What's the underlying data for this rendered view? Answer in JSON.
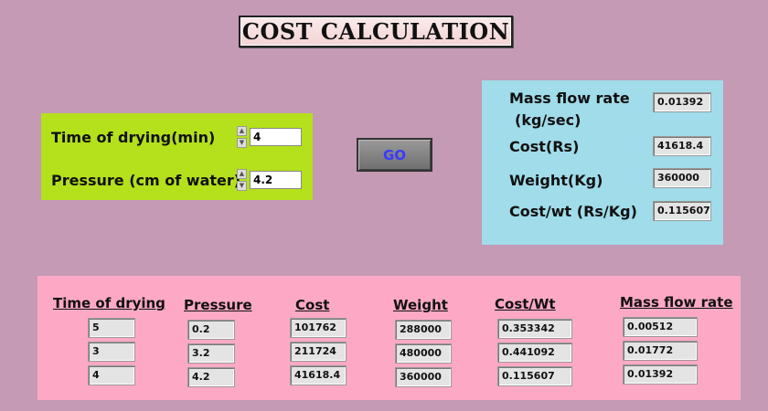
{
  "title": "COST CALCULATION",
  "inputs": {
    "time_label": "Time of drying(min)",
    "time_value": "4",
    "pressure_label": "Pressure (cm of water)",
    "pressure_value": "4.2"
  },
  "go_label": "GO",
  "outputs": {
    "mass_flow_label_1": "Mass flow rate",
    "mass_flow_label_2": "(kg/sec)",
    "mass_flow_value": "0.01392",
    "cost_label": "Cost(Rs)",
    "cost_value": "41618.4",
    "weight_label": "Weight(Kg)",
    "weight_value": "360000",
    "cost_wt_label": "Cost/wt (Rs/Kg)",
    "cost_wt_value": "0.115607"
  },
  "history": {
    "headers": {
      "time": "Time of drying",
      "pressure": "Pressure",
      "cost": "Cost",
      "weight": "Weight",
      "cost_wt": "Cost/Wt",
      "mass_flow": "Mass flow rate"
    },
    "time": [
      "5",
      "3",
      "4"
    ],
    "pressure": [
      "0.2",
      "3.2",
      "4.2"
    ],
    "cost": [
      "101762",
      "211724",
      "41618.4"
    ],
    "weight": [
      "288000",
      "480000",
      "360000"
    ],
    "cost_wt": [
      "0.353342",
      "0.441092",
      "0.115607"
    ],
    "mass_flow": [
      "0.00512",
      "0.01772",
      "0.01392"
    ]
  }
}
